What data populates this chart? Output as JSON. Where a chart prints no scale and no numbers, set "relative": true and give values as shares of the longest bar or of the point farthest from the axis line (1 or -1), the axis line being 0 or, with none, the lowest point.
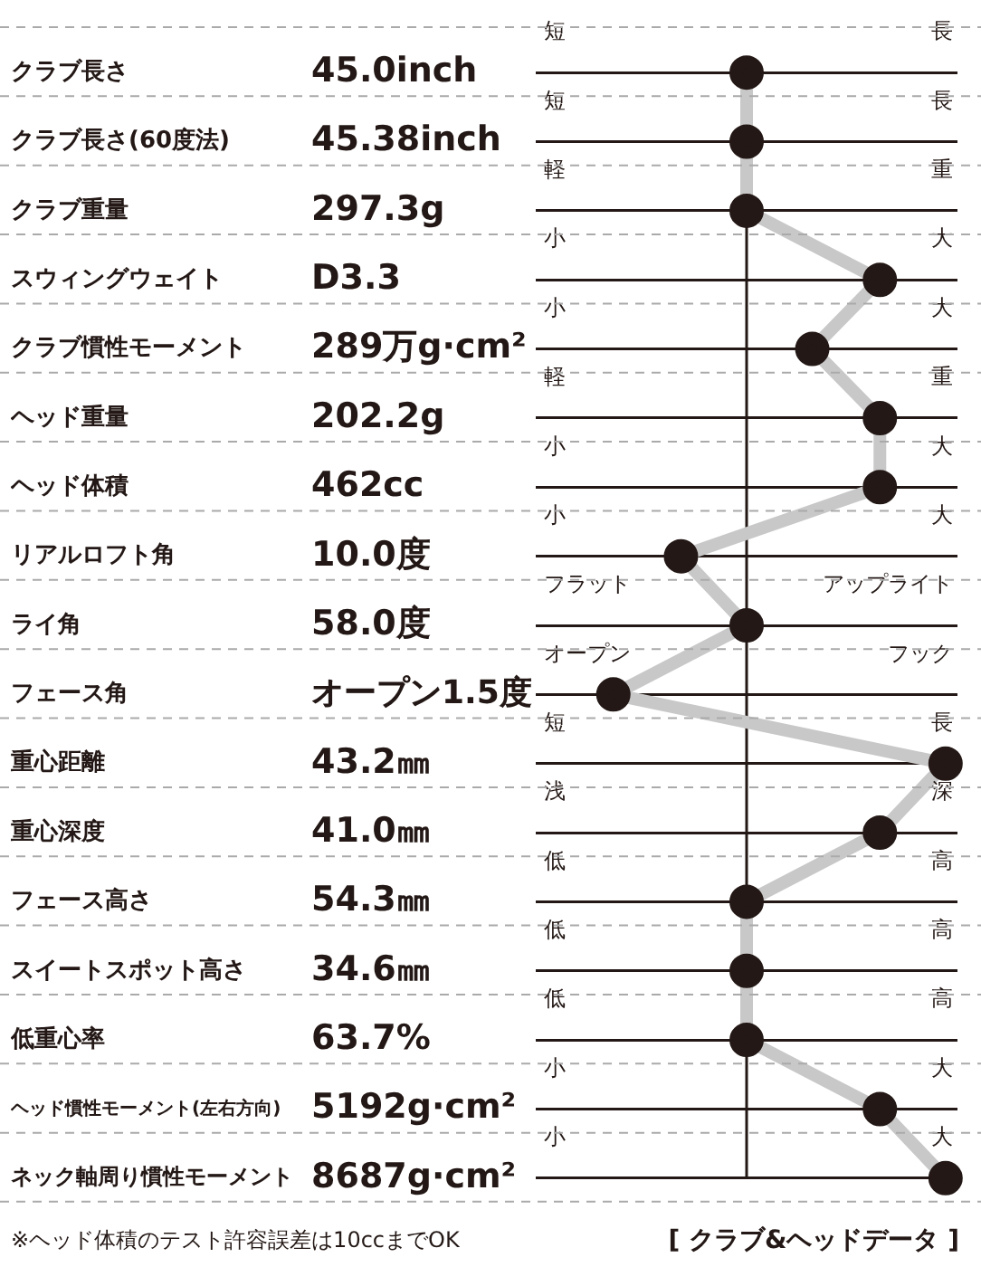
{
  "chart_data": {
    "type": "line",
    "orientation": "horizontal",
    "relative": true,
    "categories": [
      "クラブ長さ",
      "クラブ長さ(60度法)",
      "クラブ重量",
      "スウィングウェイト",
      "クラブ慣性モーメント",
      "ヘッド重量",
      "ヘッド体積",
      "リアルロフト角",
      "ライ角",
      "フェース角",
      "重心距離",
      "重心深度",
      "フェース高さ",
      "スイートスポット高さ",
      "低重心率",
      "ヘッド慣性モーメント(左右方向)",
      "ネック軸周り慣性モーメント"
    ],
    "series": [
      {
        "color": "#231815",
        "values": [
          0,
          0,
          0,
          0.67,
          0.33,
          0.67,
          0.67,
          -0.33,
          0,
          -0.67,
          1,
          0.67,
          0,
          0,
          0,
          0.67,
          1
        ]
      }
    ],
    "marker": "circle",
    "grid": "y",
    "legend": false,
    "annotations": [
      "※ヘッド体積のテスト許容誤差は10ccまでOK",
      "[ クラブ&ヘッドデータ ]",
      "45.0inch",
      "短",
      "長",
      "45.38inch",
      "短",
      "長",
      "297.3g",
      "軽",
      "重",
      "D3.3",
      "小",
      "大",
      "289万g·cm²",
      "小",
      "大",
      "202.2g",
      "軽",
      "重",
      "462cc",
      "小",
      "大",
      "10.0度",
      "小",
      "大",
      "58.0度",
      "フラット",
      "アップライト",
      "オープン1.5度",
      "オープン",
      "フック",
      "43.2㎜",
      "短",
      "長",
      "41.0㎜",
      "浅",
      "深",
      "54.3㎜",
      "低",
      "高",
      "34.6㎜",
      "低",
      "高",
      "63.7%",
      "低",
      "高",
      "5192g·cm²",
      "小",
      "大",
      "8687g·cm²",
      "小",
      "大"
    ]
  }
}
